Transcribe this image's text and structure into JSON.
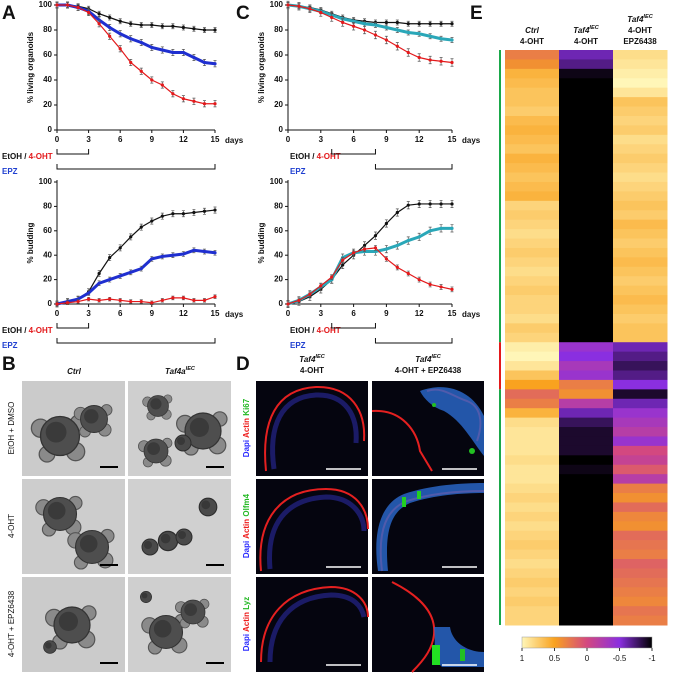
{
  "chart_data": [
    {
      "type": "line",
      "letter": "A",
      "ylabel": "% living organoids",
      "xlabel": "days",
      "x": [
        0,
        1,
        2,
        3,
        4,
        5,
        6,
        7,
        8,
        9,
        10,
        11,
        12,
        13,
        14,
        15
      ],
      "xlim": [
        0,
        15
      ],
      "xticks": [
        0,
        3,
        6,
        9,
        12,
        15
      ],
      "ylim": [
        0,
        100
      ],
      "yticks": [
        0,
        20,
        40,
        60,
        80,
        100
      ],
      "series": [
        {
          "color": "#111111",
          "line_width": 1.2,
          "error": 2,
          "values": [
            100,
            100,
            99,
            97,
            93,
            90,
            87,
            85,
            84,
            84,
            83,
            83,
            82,
            81,
            80,
            80
          ]
        },
        {
          "color": "#1f2fd0",
          "line_width": 3,
          "error": 2.5,
          "values": [
            100,
            100,
            98,
            95,
            88,
            82,
            77,
            73,
            70,
            66,
            64,
            62,
            62,
            58,
            54,
            53
          ]
        },
        {
          "color": "#e3191b",
          "line_width": 1.2,
          "error": 2.5,
          "values": [
            100,
            100,
            98,
            94,
            85,
            75,
            65,
            54,
            47,
            40,
            36,
            29,
            25,
            23,
            21,
            21
          ]
        }
      ],
      "treatments": [
        {
          "parts": [
            {
              "text": "EtOH / ",
              "color": "#111111"
            },
            {
              "text": "4-OHT",
              "color": "#e3191b"
            }
          ],
          "range": [
            0,
            3
          ]
        },
        {
          "parts": [
            {
              "text": "EPZ",
              "color": "#1f3fd0"
            }
          ],
          "range": [
            0,
            15
          ]
        }
      ]
    },
    {
      "type": "line",
      "ylabel": "% budding",
      "xlabel": "days",
      "x": [
        0,
        1,
        2,
        3,
        4,
        5,
        6,
        7,
        8,
        9,
        10,
        11,
        12,
        13,
        14,
        15
      ],
      "xlim": [
        0,
        15
      ],
      "xticks": [
        0,
        3,
        6,
        9,
        12,
        15
      ],
      "ylim": [
        0,
        100
      ],
      "yticks": [
        0,
        20,
        40,
        60,
        80,
        100
      ],
      "series": [
        {
          "color": "#111111",
          "line_width": 1.2,
          "error": 2.5,
          "values": [
            0,
            2,
            4,
            10,
            25,
            38,
            46,
            55,
            63,
            68,
            72,
            74,
            74,
            75,
            76,
            77
          ]
        },
        {
          "color": "#1f2fd0",
          "line_width": 3,
          "error": 2,
          "values": [
            0,
            2,
            4,
            9,
            17,
            20,
            23,
            26,
            29,
            37,
            39,
            40,
            41,
            44,
            43,
            42
          ]
        },
        {
          "color": "#e3191b",
          "line_width": 1.2,
          "error": 1.5,
          "values": [
            0,
            1,
            2,
            4,
            3,
            4,
            3,
            2,
            2,
            1,
            3,
            5,
            5,
            3,
            3,
            6
          ]
        }
      ],
      "treatments": [
        {
          "parts": [
            {
              "text": "EtOH / ",
              "color": "#111111"
            },
            {
              "text": "4-OHT",
              "color": "#e3191b"
            }
          ],
          "range": [
            0,
            3
          ]
        },
        {
          "parts": [
            {
              "text": "EPZ",
              "color": "#1f3fd0"
            }
          ],
          "range": [
            0,
            15
          ]
        }
      ]
    },
    {
      "type": "line",
      "letter": "C",
      "ylabel": "% living organoids",
      "xlabel": "days",
      "x": [
        0,
        1,
        2,
        3,
        4,
        5,
        6,
        7,
        8,
        9,
        10,
        11,
        12,
        13,
        14,
        15
      ],
      "xlim": [
        0,
        15
      ],
      "xticks": [
        0,
        3,
        6,
        9,
        12,
        15
      ],
      "ylim": [
        0,
        100
      ],
      "yticks": [
        0,
        20,
        40,
        60,
        80,
        100
      ],
      "series": [
        {
          "color": "#111111",
          "line_width": 1.2,
          "error": 2,
          "values": [
            100,
            99,
            98,
            96,
            93,
            90,
            88,
            87,
            86,
            86,
            86,
            85,
            85,
            85,
            85,
            85
          ]
        },
        {
          "color": "#2aa7b8",
          "line_width": 3,
          "error": 2,
          "values": [
            100,
            99,
            97,
            95,
            92,
            89,
            87,
            85,
            84,
            82,
            80,
            78,
            77,
            75,
            73,
            72
          ]
        },
        {
          "color": "#e3191b",
          "line_width": 1.2,
          "error": 3,
          "values": [
            100,
            99,
            97,
            94,
            90,
            86,
            83,
            80,
            76,
            72,
            67,
            62,
            58,
            56,
            55,
            54
          ]
        }
      ],
      "treatments": [
        {
          "parts": [
            {
              "text": "EtOH / ",
              "color": "#111111"
            },
            {
              "text": "4-OHT",
              "color": "#e3191b"
            }
          ],
          "range": [
            4,
            8
          ]
        },
        {
          "parts": [
            {
              "text": "EPZ",
              "color": "#1f3fd0"
            }
          ],
          "range": [
            8,
            15
          ]
        }
      ]
    },
    {
      "type": "line",
      "ylabel": "% budding",
      "xlabel": "days",
      "x": [
        0,
        1,
        2,
        3,
        4,
        5,
        6,
        7,
        8,
        9,
        10,
        11,
        12,
        13,
        14,
        15
      ],
      "xlim": [
        0,
        15
      ],
      "xticks": [
        0,
        3,
        6,
        9,
        12,
        15
      ],
      "ylim": [
        0,
        100
      ],
      "yticks": [
        0,
        20,
        40,
        60,
        80,
        100
      ],
      "series": [
        {
          "color": "#111111",
          "line_width": 1.2,
          "error": 3,
          "values": [
            0,
            2,
            6,
            12,
            20,
            32,
            40,
            48,
            56,
            66,
            75,
            81,
            82,
            82,
            82,
            82
          ]
        },
        {
          "color": "#2aa7b8",
          "line_width": 3,
          "error": 3,
          "values": [
            0,
            3,
            8,
            14,
            20,
            38,
            42,
            43,
            43,
            45,
            48,
            52,
            55,
            60,
            62,
            62
          ]
        },
        {
          "color": "#e3191b",
          "line_width": 1.2,
          "error": 2,
          "values": [
            0,
            3,
            8,
            15,
            22,
            36,
            42,
            45,
            46,
            37,
            30,
            25,
            20,
            16,
            14,
            12
          ]
        }
      ],
      "treatments": [
        {
          "parts": [
            {
              "text": "EtOH / ",
              "color": "#111111"
            },
            {
              "text": "4-OHT",
              "color": "#e3191b"
            }
          ],
          "range": [
            4,
            8
          ]
        },
        {
          "parts": [
            {
              "text": "EPZ",
              "color": "#1f3fd0"
            }
          ],
          "range": [
            8,
            15
          ]
        }
      ]
    },
    {
      "type": "heatmap",
      "letter": "E",
      "columns": [
        {
          "header": [
            {
              "text": "Ctrl",
              "italic": true
            },
            {
              "text": "4-OHT"
            }
          ],
          "values": [
            0.3,
            0.4,
            0.6,
            0.65,
            0.7,
            0.7,
            0.75,
            0.65,
            0.6,
            0.65,
            0.7,
            0.6,
            0.65,
            0.7,
            0.65,
            0.6,
            0.8,
            0.75,
            0.8,
            0.85,
            0.8,
            0.75,
            0.8,
            0.85,
            0.8,
            0.75,
            0.8,
            0.8,
            0.85,
            0.75,
            0.8,
            0.95,
            1,
            0.9,
            0.7,
            0.5,
            0.2,
            0.3,
            0.6,
            0.85,
            0.9,
            0.9,
            0.9,
            0.85,
            0.9,
            0.9,
            0.85,
            0.8,
            0.85,
            0.8,
            0.85,
            0.8,
            0.75,
            0.8,
            0.85,
            0.8,
            0.75,
            0.8,
            0.75,
            0.8,
            0.8
          ]
        },
        {
          "header": [
            {
              "text": "Taf4",
              "sup": "IEC",
              "italic": true
            },
            {
              "text": "4-OHT"
            }
          ],
          "values": [
            -0.6,
            -0.7,
            -0.95,
            -1,
            -1,
            -1,
            -1,
            -1,
            -1,
            -1,
            -1,
            -1,
            -1,
            -1,
            -1,
            -1,
            -1,
            -1,
            -1,
            -1,
            -1,
            -1,
            -1,
            -1,
            -1,
            -1,
            -1,
            -1,
            -1,
            -1,
            -1,
            -0.4,
            -0.5,
            -0.3,
            -0.4,
            0.3,
            0.4,
            -0.2,
            -0.6,
            -0.8,
            -0.9,
            -0.9,
            -0.9,
            -1,
            -0.95,
            -1,
            -1,
            -1,
            -1,
            -1,
            -1,
            -1,
            -1,
            -1,
            -1,
            -1,
            -1,
            -1,
            -1,
            -1,
            -1
          ]
        },
        {
          "header": [
            {
              "text": "Taf4",
              "sup": "IEC",
              "italic": true
            },
            {
              "text": "4-OHT"
            },
            {
              "text": "EPZ6438"
            }
          ],
          "values": [
            0.85,
            0.9,
            0.95,
            1,
            0.9,
            0.7,
            0.75,
            0.8,
            0.75,
            0.85,
            0.8,
            0.75,
            0.8,
            0.85,
            0.8,
            0.75,
            0.7,
            0.75,
            0.65,
            0.7,
            0.75,
            0.7,
            0.65,
            0.7,
            0.75,
            0.7,
            0.65,
            0.7,
            0.75,
            0.7,
            0.7,
            -0.6,
            -0.7,
            -0.8,
            -0.7,
            -0.5,
            -0.9,
            -0.6,
            -0.4,
            -0.3,
            -0.2,
            -0.4,
            0,
            -0.1,
            0.1,
            -0.2,
            0.3,
            0.4,
            0.2,
            0.35,
            0.4,
            0.2,
            0.25,
            0.3,
            0.15,
            0.2,
            0.25,
            0.3,
            0.35,
            0.25,
            0.3
          ]
        }
      ],
      "clim": [
        -1,
        1
      ],
      "colorbar_ticks": [
        1,
        0.5,
        0,
        -0.5,
        -1
      ],
      "colormap": [
        "#fff6b8",
        "#f9a21f",
        "#d34880",
        "#8a2fe0",
        "#000000"
      ]
    }
  ],
  "panel_b": {
    "letter": "B",
    "columns": [
      {
        "text": "Ctrl"
      },
      {
        "text": "Taf4a",
        "sup": "IEC"
      }
    ],
    "rows": [
      "EtOH + DMSO",
      "4-OHT",
      "4-OHT + EPZ6438"
    ]
  },
  "panel_d": {
    "letter": "D",
    "columns": [
      {
        "lines": [
          {
            "text": "Taf4",
            "sup": "IEC"
          },
          {
            "text": "4-OHT"
          }
        ]
      },
      {
        "lines": [
          {
            "text": "Taf4",
            "sup": "IEC"
          },
          {
            "text": "4-OHT + EPZ6438"
          }
        ]
      }
    ],
    "rows": [
      [
        {
          "text": "Dapi ",
          "color": "#2b2bff"
        },
        {
          "text": "Actin ",
          "color": "#ee1c1c"
        },
        {
          "text": "Ki67",
          "color": "#22b822"
        }
      ],
      [
        {
          "text": "Dapi ",
          "color": "#2b2bff"
        },
        {
          "text": "Actin ",
          "color": "#ee1c1c"
        },
        {
          "text": "Olfm4",
          "color": "#22b822"
        }
      ],
      [
        {
          "text": "Dapi ",
          "color": "#2b2bff"
        },
        {
          "text": "Actin ",
          "color": "#ee1c1c"
        },
        {
          "text": "Lyz",
          "color": "#22b822"
        }
      ]
    ]
  }
}
